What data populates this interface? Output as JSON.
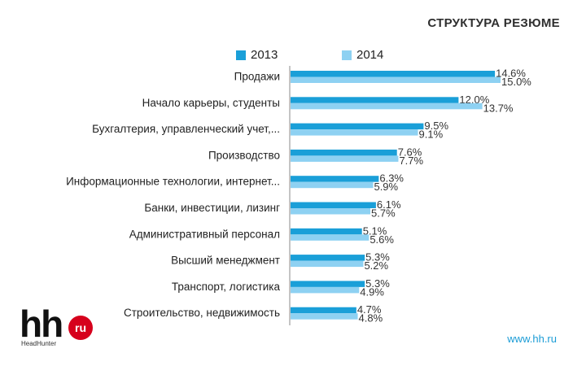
{
  "chart_data": {
    "type": "bar",
    "orientation": "horizontal",
    "title": "СТРУКТУРА РЕЗЮМЕ",
    "categories": [
      "Продажи",
      "Начало карьеры, студенты",
      "Бухгалтерия, управленческий учет,...",
      "Производство",
      "Информационные технологии, интернет...",
      "Банки, инвестиции, лизинг",
      "Административный персонал",
      "Высший менеджмент",
      "Транспорт, логистика",
      "Строительство, недвижимость"
    ],
    "series": [
      {
        "name": "2013",
        "color": "#1a9fd8",
        "values": [
          14.6,
          12.0,
          9.5,
          7.6,
          6.3,
          6.1,
          5.1,
          5.3,
          5.3,
          4.7
        ],
        "labels": [
          "14.6%",
          "12.0%",
          "9.5%",
          "7.6%",
          "6.3%",
          "6.1%",
          "5.1%",
          "5.3%",
          "5.3%",
          "4.7%"
        ]
      },
      {
        "name": "2014",
        "color": "#8ed1f2",
        "values": [
          15.0,
          13.7,
          9.1,
          7.7,
          5.9,
          5.7,
          5.6,
          5.2,
          4.9,
          4.8
        ],
        "labels": [
          "15.0%",
          "13.7%",
          "9.1%",
          "7.7%",
          "5.9%",
          "5.7%",
          "5.6%",
          "5.2%",
          "4.9%",
          "4.8%"
        ]
      }
    ],
    "xlim": [
      0,
      16
    ],
    "legend": "top",
    "grid": false
  },
  "legend": {
    "s2013": "2013",
    "s2014": "2014"
  },
  "logo": {
    "mark": "hh",
    "badge": "ru",
    "subtitle": "HeadHunter"
  },
  "footer": {
    "site": "www.hh.ru"
  },
  "colors": {
    "accent": "#1a9fd8",
    "accent_light": "#8ed1f2",
    "logo_red": "#d6001c"
  }
}
